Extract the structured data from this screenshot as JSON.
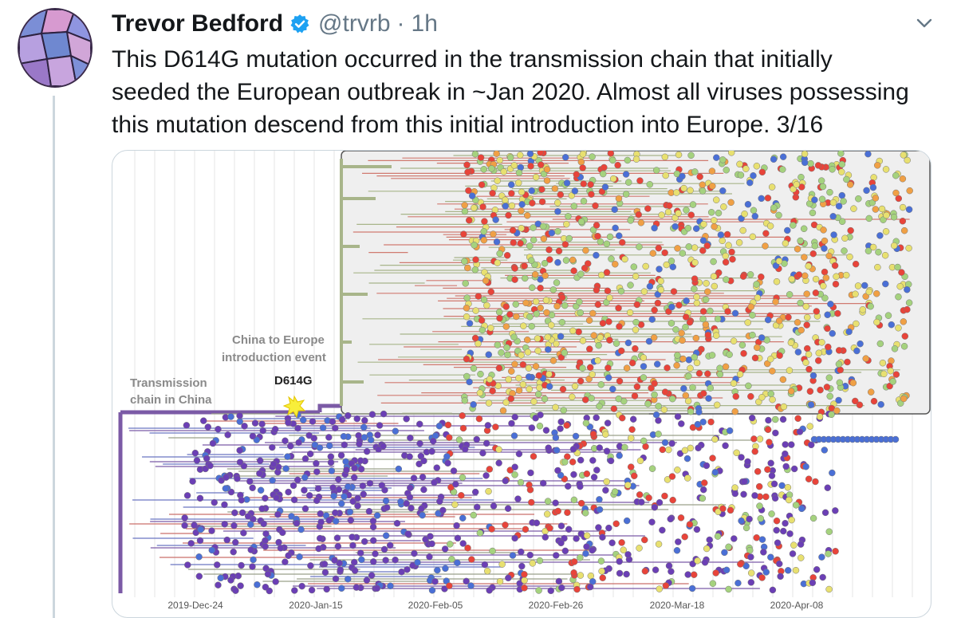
{
  "tweet": {
    "author_name": "Trevor Bedford",
    "handle": "@trvrb",
    "separator": "·",
    "time": "1h",
    "text": "This D614G mutation occurred in the transmission chain that initially\nseeded the European outbreak in ~Jan 2020. Almost all viruses possessing\nthis mutation descend from this initial introduction into Europe. 3/16"
  },
  "figure": {
    "annotations": {
      "china_europe_line1": "China to Europe",
      "china_europe_line2": "introduction event",
      "mutation": "D614G",
      "transmission_line1": "Transmission",
      "transmission_line2": "chain in China"
    },
    "x_ticks": [
      "2019-Dec-24",
      "2020-Jan-15",
      "2020-Feb-05",
      "2020-Feb-26",
      "2020-Mar-18",
      "2020-Apr-08"
    ],
    "colors": {
      "china_branch": "#7b5aa6",
      "europe_branch": "#a8b58a",
      "red": "#e8443a",
      "yellow": "#e8e070",
      "green": "#a5d27e",
      "blue": "#4a6fd6",
      "purple": "#6b3fb5",
      "orange": "#f0a045"
    }
  }
}
